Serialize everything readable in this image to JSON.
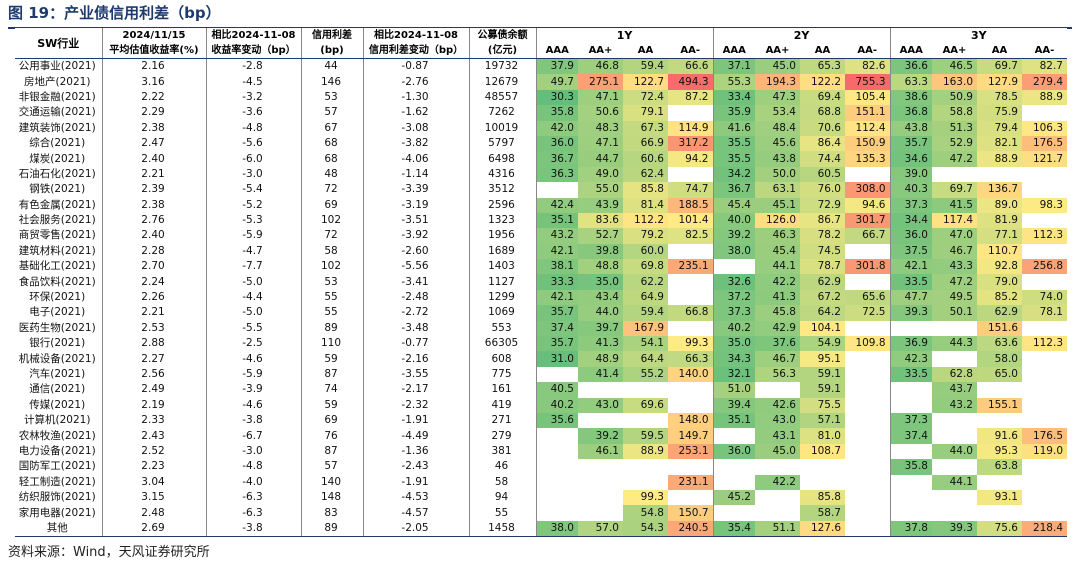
{
  "title": "图 19：产业债信用利差（bp）",
  "source": "资料来源：Wind，天风证券研究所",
  "header": {
    "col_industry": "SW行业",
    "col_yield_date": "2024/11/15",
    "col_yield_label": "平均估值收益率(%)",
    "col_ychg_date": "相比2024-11-08",
    "col_ychg_label": "收益率变动（bp）",
    "col_spread_label1": "信用利差",
    "col_spread_label2": "(bp)",
    "col_schg_date": "相比2024-11-08",
    "col_schg_label": "信用利差变动（bp）",
    "col_bal_label1": "公募债余额",
    "col_bal_label2": "(亿元)",
    "groups": [
      "1Y",
      "2Y",
      "3Y"
    ],
    "ratings": [
      "AAA",
      "AA+",
      "AA",
      "AA-"
    ]
  },
  "rows": [
    {
      "name": "公用事业(2021)",
      "yield": "2.16",
      "ychg": "-2.8",
      "spread": "44",
      "schg": "-0.87",
      "bal": "19732",
      "v": [
        "37.9",
        "46.8",
        "59.4",
        "66.6",
        "37.1",
        "45.0",
        "65.3",
        "82.6",
        "36.6",
        "46.5",
        "69.7",
        "82.7"
      ]
    },
    {
      "name": "房地产(2021)",
      "yield": "3.16",
      "ychg": "-4.5",
      "spread": "146",
      "schg": "-2.76",
      "bal": "12679",
      "v": [
        "49.7",
        "275.1",
        "122.7",
        "494.3",
        "55.3",
        "194.3",
        "122.2",
        "755.3",
        "63.3",
        "163.0",
        "127.9",
        "279.4"
      ]
    },
    {
      "name": "非银金融(2021)",
      "yield": "2.22",
      "ychg": "-3.2",
      "spread": "53",
      "schg": "-1.30",
      "bal": "48557",
      "v": [
        "30.3",
        "47.1",
        "72.4",
        "87.2",
        "33.4",
        "47.3",
        "69.4",
        "105.4",
        "38.6",
        "50.9",
        "78.5",
        "88.9"
      ]
    },
    {
      "name": "交通运输(2021)",
      "yield": "2.29",
      "ychg": "-3.6",
      "spread": "57",
      "schg": "-1.62",
      "bal": "7262",
      "v": [
        "35.8",
        "50.6",
        "79.1",
        "",
        "35.9",
        "53.4",
        "68.8",
        "151.1",
        "36.8",
        "58.8",
        "75.9",
        ""
      ]
    },
    {
      "name": "建筑装饰(2021)",
      "yield": "2.38",
      "ychg": "-4.8",
      "spread": "67",
      "schg": "-3.08",
      "bal": "10019",
      "v": [
        "42.0",
        "48.3",
        "67.3",
        "114.9",
        "41.6",
        "48.4",
        "70.6",
        "112.4",
        "43.8",
        "51.3",
        "79.4",
        "106.3"
      ]
    },
    {
      "name": "综合(2021)",
      "yield": "2.47",
      "ychg": "-5.6",
      "spread": "68",
      "schg": "-3.82",
      "bal": "5797",
      "v": [
        "36.0",
        "47.1",
        "66.9",
        "317.2",
        "35.5",
        "45.6",
        "86.4",
        "150.9",
        "35.7",
        "52.9",
        "82.1",
        "176.5"
      ]
    },
    {
      "name": "煤炭(2021)",
      "yield": "2.40",
      "ychg": "-6.0",
      "spread": "68",
      "schg": "-4.06",
      "bal": "6498",
      "v": [
        "36.7",
        "44.7",
        "60.6",
        "94.2",
        "35.5",
        "43.8",
        "74.4",
        "135.3",
        "34.6",
        "47.2",
        "88.9",
        "121.7"
      ]
    },
    {
      "name": "石油石化(2021)",
      "yield": "2.21",
      "ychg": "-3.0",
      "spread": "48",
      "schg": "-1.14",
      "bal": "4316",
      "v": [
        "36.3",
        "49.0",
        "62.4",
        "",
        "34.2",
        "50.0",
        "60.5",
        "",
        "39.0",
        "",
        "",
        ""
      ]
    },
    {
      "name": "钢铁(2021)",
      "yield": "2.39",
      "ychg": "-5.4",
      "spread": "72",
      "schg": "-3.39",
      "bal": "3512",
      "v": [
        "",
        "55.0",
        "85.8",
        "74.7",
        "36.7",
        "63.1",
        "76.0",
        "308.0",
        "40.3",
        "69.7",
        "136.7",
        ""
      ]
    },
    {
      "name": "有色金属(2021)",
      "yield": "2.38",
      "ychg": "-5.2",
      "spread": "69",
      "schg": "-3.19",
      "bal": "2596",
      "v": [
        "42.4",
        "43.9",
        "81.4",
        "188.5",
        "45.4",
        "45.1",
        "72.9",
        "94.6",
        "37.3",
        "41.5",
        "89.0",
        "98.3"
      ]
    },
    {
      "name": "社会服务(2021)",
      "yield": "2.76",
      "ychg": "-5.3",
      "spread": "102",
      "schg": "-3.51",
      "bal": "1323",
      "v": [
        "35.1",
        "83.6",
        "112.2",
        "101.4",
        "40.0",
        "126.0",
        "86.7",
        "301.7",
        "34.4",
        "117.4",
        "81.9",
        ""
      ]
    },
    {
      "name": "商贸零售(2021)",
      "yield": "2.40",
      "ychg": "-5.9",
      "spread": "72",
      "schg": "-3.92",
      "bal": "1956",
      "v": [
        "43.2",
        "52.7",
        "79.2",
        "82.5",
        "39.2",
        "46.3",
        "78.2",
        "66.7",
        "36.0",
        "47.0",
        "77.1",
        "112.3"
      ]
    },
    {
      "name": "建筑材料(2021)",
      "yield": "2.28",
      "ychg": "-4.7",
      "spread": "58",
      "schg": "-2.60",
      "bal": "1689",
      "v": [
        "42.1",
        "39.8",
        "60.0",
        "",
        "38.0",
        "45.4",
        "74.5",
        "",
        "37.5",
        "46.7",
        "110.7",
        ""
      ]
    },
    {
      "name": "基础化工(2021)",
      "yield": "2.70",
      "ychg": "-7.7",
      "spread": "102",
      "schg": "-5.56",
      "bal": "1403",
      "v": [
        "38.1",
        "48.8",
        "69.8",
        "235.1",
        "",
        "44.1",
        "78.7",
        "301.8",
        "42.1",
        "43.3",
        "92.8",
        "256.8"
      ]
    },
    {
      "name": "食品饮料(2021)",
      "yield": "2.24",
      "ychg": "-5.0",
      "spread": "53",
      "schg": "-3.41",
      "bal": "1127",
      "v": [
        "33.3",
        "35.0",
        "62.2",
        "",
        "32.6",
        "42.2",
        "62.9",
        "",
        "33.5",
        "47.2",
        "79.0",
        ""
      ]
    },
    {
      "name": "环保(2021)",
      "yield": "2.26",
      "ychg": "-4.4",
      "spread": "55",
      "schg": "-2.48",
      "bal": "1299",
      "v": [
        "42.1",
        "43.4",
        "64.9",
        "",
        "37.2",
        "41.3",
        "67.2",
        "65.6",
        "47.7",
        "49.5",
        "85.2",
        "74.0"
      ]
    },
    {
      "name": "电子(2021)",
      "yield": "2.21",
      "ychg": "-5.0",
      "spread": "55",
      "schg": "-2.72",
      "bal": "1069",
      "v": [
        "35.7",
        "44.0",
        "59.4",
        "66.8",
        "37.3",
        "45.8",
        "64.2",
        "72.5",
        "39.3",
        "50.1",
        "62.9",
        "78.1"
      ]
    },
    {
      "name": "医药生物(2021)",
      "yield": "2.53",
      "ychg": "-5.5",
      "spread": "89",
      "schg": "-3.48",
      "bal": "553",
      "v": [
        "37.4",
        "39.7",
        "167.9",
        "",
        "40.2",
        "42.9",
        "104.1",
        "",
        "",
        "",
        "151.6",
        ""
      ]
    },
    {
      "name": "银行(2021)",
      "yield": "2.88",
      "ychg": "-2.5",
      "spread": "110",
      "schg": "-0.77",
      "bal": "66305",
      "v": [
        "35.7",
        "41.3",
        "54.1",
        "99.3",
        "35.0",
        "37.6",
        "54.9",
        "109.8",
        "36.9",
        "44.3",
        "63.6",
        "112.3"
      ]
    },
    {
      "name": "机械设备(2021)",
      "yield": "2.27",
      "ychg": "-4.6",
      "spread": "59",
      "schg": "-2.16",
      "bal": "608",
      "v": [
        "31.0",
        "48.9",
        "64.4",
        "66.3",
        "34.3",
        "46.7",
        "95.1",
        "",
        "42.3",
        "",
        "58.0",
        ""
      ]
    },
    {
      "name": "汽车(2021)",
      "yield": "2.56",
      "ychg": "-5.9",
      "spread": "87",
      "schg": "-3.55",
      "bal": "775",
      "v": [
        "",
        "41.4",
        "55.2",
        "140.0",
        "32.1",
        "56.3",
        "59.1",
        "",
        "33.5",
        "62.8",
        "65.0",
        ""
      ]
    },
    {
      "name": "通信(2021)",
      "yield": "2.49",
      "ychg": "-3.9",
      "spread": "74",
      "schg": "-2.17",
      "bal": "161",
      "v": [
        "40.5",
        "",
        "",
        "",
        "51.0",
        "",
        "59.1",
        "",
        "",
        "43.7",
        "",
        ""
      ]
    },
    {
      "name": "传媒(2021)",
      "yield": "2.19",
      "ychg": "-4.6",
      "spread": "59",
      "schg": "-2.32",
      "bal": "419",
      "v": [
        "40.2",
        "43.0",
        "69.6",
        "",
        "39.4",
        "42.6",
        "75.5",
        "",
        "",
        "43.2",
        "155.1",
        ""
      ]
    },
    {
      "name": "计算机(2021)",
      "yield": "2.33",
      "ychg": "-3.8",
      "spread": "69",
      "schg": "-1.91",
      "bal": "271",
      "v": [
        "35.6",
        "",
        "",
        "148.0",
        "35.1",
        "43.0",
        "57.1",
        "",
        "37.3",
        "",
        "",
        ""
      ]
    },
    {
      "name": "农林牧渔(2021)",
      "yield": "2.43",
      "ychg": "-6.7",
      "spread": "76",
      "schg": "-4.49",
      "bal": "279",
      "v": [
        "",
        "39.2",
        "59.5",
        "149.7",
        "",
        "43.1",
        "81.0",
        "",
        "37.4",
        "",
        "91.6",
        "176.5"
      ]
    },
    {
      "name": "电力设备(2021)",
      "yield": "2.52",
      "ychg": "-3.0",
      "spread": "87",
      "schg": "-1.36",
      "bal": "381",
      "v": [
        "",
        "46.1",
        "88.9",
        "253.1",
        "36.0",
        "45.0",
        "108.7",
        "",
        "",
        "44.0",
        "95.3",
        "119.0"
      ]
    },
    {
      "name": "国防军工(2021)",
      "yield": "2.23",
      "ychg": "-4.8",
      "spread": "57",
      "schg": "-2.43",
      "bal": "46",
      "v": [
        "",
        "",
        "",
        "",
        "",
        "",
        "",
        "",
        "35.8",
        "",
        "63.8",
        ""
      ]
    },
    {
      "name": "轻工制造(2021)",
      "yield": "3.04",
      "ychg": "-4.0",
      "spread": "140",
      "schg": "-1.91",
      "bal": "58",
      "v": [
        "",
        "",
        "",
        "231.1",
        "",
        "42.2",
        "",
        "",
        "",
        "44.1",
        "",
        ""
      ]
    },
    {
      "name": "纺织服饰(2021)",
      "yield": "3.15",
      "ychg": "-6.3",
      "spread": "148",
      "schg": "-4.53",
      "bal": "94",
      "v": [
        "",
        "",
        "99.3",
        "",
        "45.2",
        "",
        "85.8",
        "",
        "",
        "",
        "93.1",
        ""
      ]
    },
    {
      "name": "家用电器(2021)",
      "yield": "2.48",
      "ychg": "-6.3",
      "spread": "83",
      "schg": "-4.57",
      "bal": "55",
      "v": [
        "",
        "",
        "54.8",
        "150.7",
        "",
        "",
        "58.7",
        "",
        "",
        "",
        "",
        ""
      ]
    },
    {
      "name": "其他",
      "yield": "2.69",
      "ychg": "-3.8",
      "spread": "89",
      "schg": "-2.05",
      "bal": "1458",
      "v": [
        "38.0",
        "57.0",
        "54.3",
        "240.5",
        "35.4",
        "51.1",
        "127.6",
        "",
        "37.8",
        "39.3",
        "75.6",
        "218.4"
      ]
    }
  ],
  "colors": {
    "title": "#1f3b6e",
    "header_bg": "#fff",
    "low": "#63be7b",
    "mid": "#ffeb84",
    "high": "#f8696b"
  }
}
